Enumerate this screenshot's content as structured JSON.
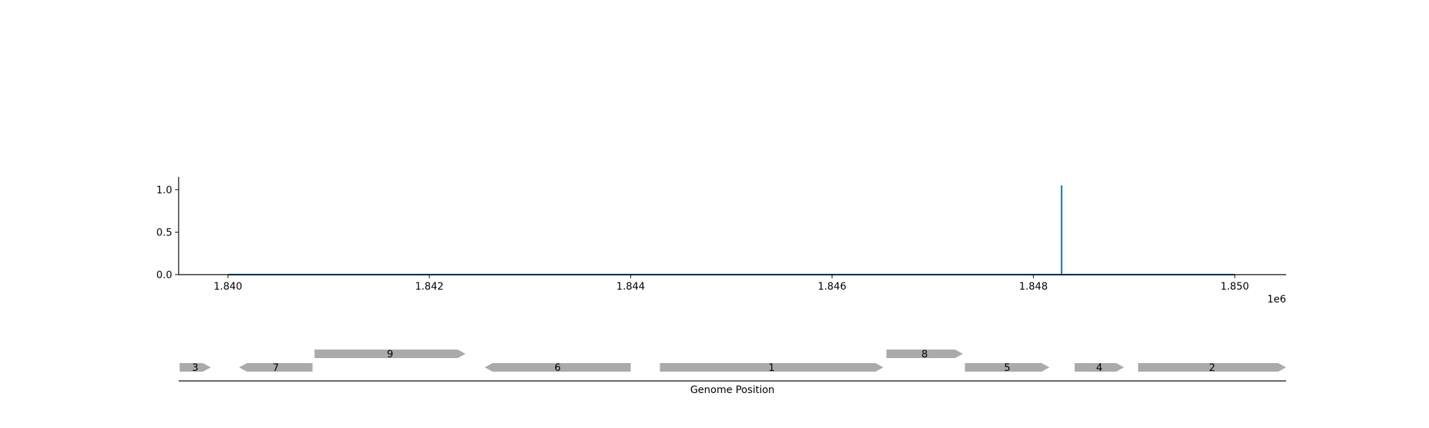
{
  "chart_data": [
    {
      "type": "line",
      "title": "",
      "xlabel": "",
      "ylabel": "",
      "x_offset_label": "1e6",
      "xlim": [
        1.83951,
        1.85051
      ],
      "ylim": [
        0.0,
        1.15
      ],
      "x_ticks": [
        1.84,
        1.842,
        1.844,
        1.846,
        1.848,
        1.85
      ],
      "x_tick_labels": [
        "1.840",
        "1.842",
        "1.844",
        "1.846",
        "1.848",
        "1.850"
      ],
      "y_ticks": [
        0.0,
        0.5,
        1.0
      ],
      "y_tick_labels": [
        "0.0",
        "0.5",
        "1.0"
      ],
      "grid": false,
      "series": [
        {
          "color": "#1f77b4",
          "x": [
            1.84,
            1.84828,
            1.84828,
            1.84828,
            1.85
          ],
          "y": [
            0.0,
            0.0,
            1.05,
            0.0,
            0.0
          ]
        }
      ]
    },
    {
      "type": "gene_track",
      "xlabel": "Genome Position",
      "xlim": [
        1.83951,
        1.85051
      ],
      "feature_color": "#aaaaaa",
      "genes": [
        {
          "label": "3",
          "start": 1.83952,
          "end": 1.83983,
          "strand": "+",
          "row": 0
        },
        {
          "label": "7",
          "start": 1.84011,
          "end": 1.84084,
          "strand": "-",
          "row": 0
        },
        {
          "label": "9",
          "start": 1.84086,
          "end": 1.84236,
          "strand": "+",
          "row": 1
        },
        {
          "label": "6",
          "start": 1.84255,
          "end": 1.844,
          "strand": "-",
          "row": 0
        },
        {
          "label": "1",
          "start": 1.84429,
          "end": 1.84651,
          "strand": "+",
          "row": 0
        },
        {
          "label": "8",
          "start": 1.84654,
          "end": 1.8473,
          "strand": "+",
          "row": 1
        },
        {
          "label": "5",
          "start": 1.84732,
          "end": 1.84816,
          "strand": "+",
          "row": 0
        },
        {
          "label": "4",
          "start": 1.84841,
          "end": 1.8489,
          "strand": "+",
          "row": 0
        },
        {
          "label": "2",
          "start": 1.84904,
          "end": 1.85051,
          "strand": "+",
          "row": 0
        }
      ]
    }
  ]
}
